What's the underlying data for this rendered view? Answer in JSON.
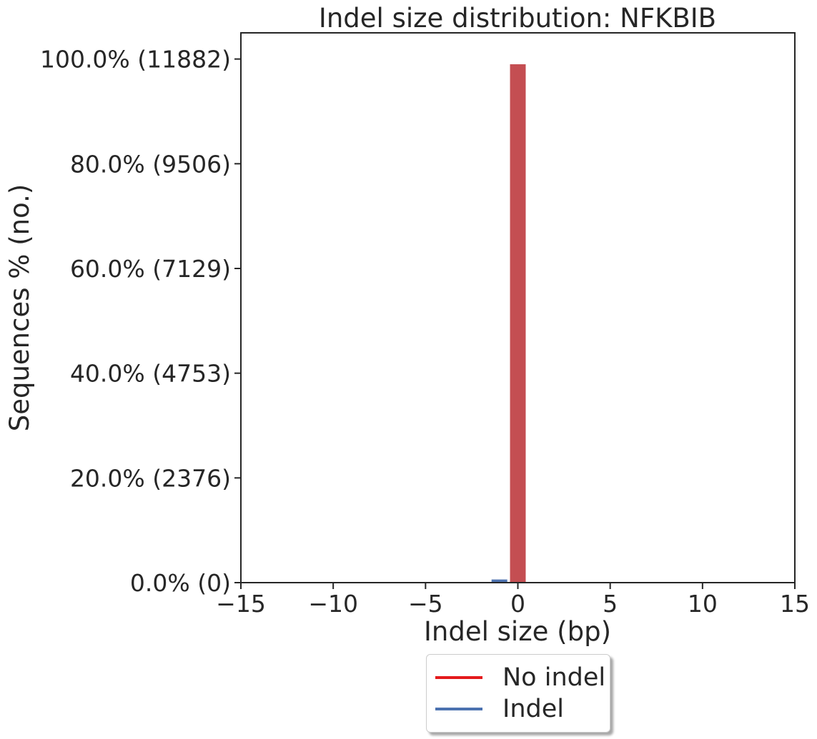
{
  "chart_data": {
    "type": "bar",
    "title": "Indel size distribution: NFKBIB",
    "xlabel": "Indel size (bp)",
    "ylabel": "Sequences % (no.)",
    "xlim": [
      -15,
      15
    ],
    "ylim": [
      0,
      105
    ],
    "x_ticks": [
      -15,
      -10,
      -5,
      0,
      5,
      10,
      15
    ],
    "x_tick_labels": [
      "−15",
      "−10",
      "−5",
      "0",
      "5",
      "10",
      "15"
    ],
    "y_ticks": [
      0,
      20,
      40,
      60,
      80,
      100
    ],
    "y_tick_labels": [
      "0.0% (0)",
      "20.0% (2376)",
      "40.0% (4753)",
      "60.0% (7129)",
      "80.0% (9506)",
      "100.0% (11882)"
    ],
    "series": [
      {
        "name": "No indel",
        "color": "#c44e52",
        "x": [
          0
        ],
        "values": [
          99.0
        ]
      },
      {
        "name": "Indel",
        "color": "#4c72b0",
        "x": [
          -1,
          1
        ],
        "values": [
          0.6,
          0.1
        ]
      }
    ],
    "legend": {
      "placement": "bottom-center",
      "entries": [
        {
          "label": "No indel",
          "color": "#e41a1c"
        },
        {
          "label": "Indel",
          "color": "#4c72b0"
        }
      ]
    },
    "grid": false
  }
}
